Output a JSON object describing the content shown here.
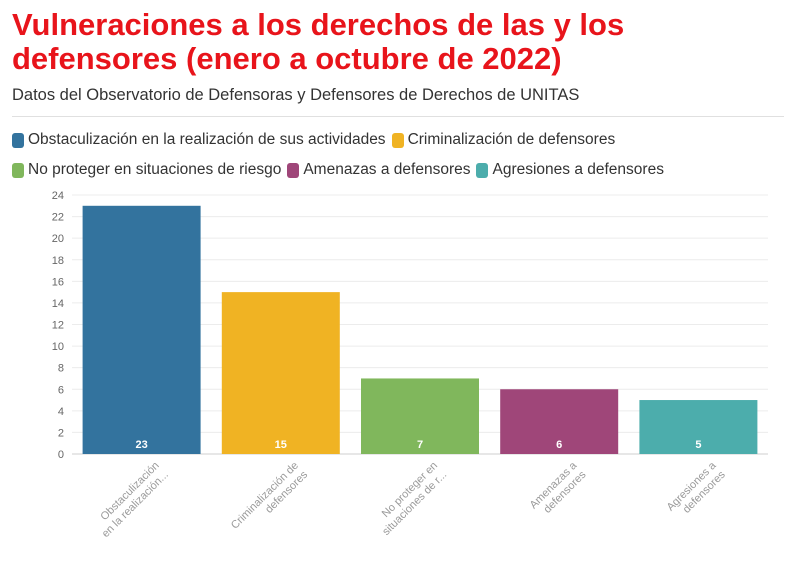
{
  "header": {
    "title": "Vulneraciones a los derechos de las y los defensores (enero a octubre de 2022)",
    "subtitle": "Datos del Observatorio de Defensoras y Defensores de Derechos de UNITAS"
  },
  "legend": [
    {
      "label": "Obstaculización en la realización de sus actividades",
      "color": "#33739e"
    },
    {
      "label": "Criminalización de defensores",
      "color": "#f0b323"
    },
    {
      "label": "No proteger en situaciones de riesgo",
      "color": "#80b75c"
    },
    {
      "label": "Amenazas a defensores",
      "color": "#9f4679"
    },
    {
      "label": "Agresiones a defensores",
      "color": "#4cadac"
    }
  ],
  "chart_data": {
    "type": "bar",
    "categories": [
      "Obstaculización en la realización...",
      "Criminalización de defensores",
      "No proteger en situaciones de r...",
      "Amenazas a defensores",
      "Agresiones a defensores"
    ],
    "category_lines": [
      [
        "Obstaculización",
        "en la realización..."
      ],
      [
        "Criminalización de",
        "defensores"
      ],
      [
        "No proteger en",
        "situaciones de r..."
      ],
      [
        "Amenazas a",
        "defensores"
      ],
      [
        "Agresiones a",
        "defensores"
      ]
    ],
    "values": [
      23,
      15,
      7,
      6,
      5
    ],
    "colors": [
      "#33739e",
      "#f0b323",
      "#80b75c",
      "#9f4679",
      "#4cadac"
    ],
    "ylim": [
      0,
      24
    ],
    "yticks": [
      0,
      2,
      4,
      6,
      8,
      10,
      12,
      14,
      16,
      18,
      20,
      22,
      24
    ],
    "grid": true,
    "legend_position": "top-left",
    "data_labels": true
  }
}
